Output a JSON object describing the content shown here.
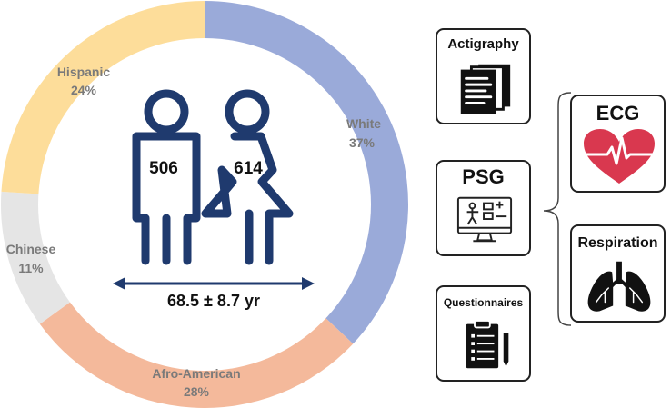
{
  "chart_data": {
    "type": "donut",
    "slices": [
      {
        "label": "White",
        "pct_label": "37%",
        "value": 37,
        "color": "#9aaad9"
      },
      {
        "label": "Afro-American",
        "pct_label": "28%",
        "value": 28,
        "color": "#f4b99b"
      },
      {
        "label": "Chinese",
        "pct_label": "11%",
        "value": 11,
        "color": "#e5e5e5"
      },
      {
        "label": "Hispanic",
        "pct_label": "24%",
        "value": 24,
        "color": "#fddd9a"
      }
    ]
  },
  "participants": {
    "male_count": "506",
    "female_count": "614",
    "age": "68.5 ± 8.7 yr",
    "figure_color": "#1f3a6e"
  },
  "modalities": {
    "actigraphy": {
      "label": "Actigraphy",
      "icon": "documents-icon"
    },
    "psg": {
      "label": "PSG",
      "icon": "monitor-icon"
    },
    "questionnaires": {
      "label": "Questionnaires",
      "icon": "clipboard-icon"
    },
    "ecg": {
      "label": "ECG",
      "icon": "heart-ecg-icon",
      "color": "#d9384f"
    },
    "respiration": {
      "label": "Respiration",
      "icon": "lungs-icon"
    }
  }
}
